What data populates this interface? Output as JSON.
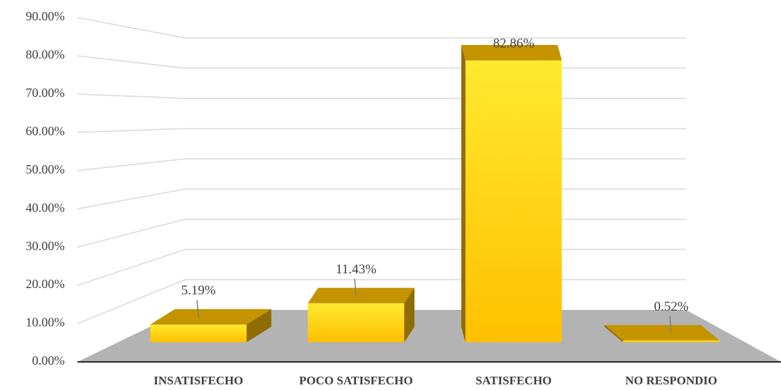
{
  "chart_data": {
    "type": "bar3d",
    "categories": [
      "INSATISFECHO",
      "POCO SATISFECHO",
      "SATISFECHO",
      "NO RESPONDIO"
    ],
    "values": [
      5.19,
      11.43,
      82.86,
      0.52
    ],
    "value_labels": [
      "5.19%",
      "11.43%",
      "82.86%",
      "0.52%"
    ],
    "color": "#ffc000",
    "ylim": [
      0,
      90
    ],
    "yticks": [
      {
        "value": 0,
        "label": "0.00%"
      },
      {
        "value": 10,
        "label": "10.00%"
      },
      {
        "value": 20,
        "label": "20.00%"
      },
      {
        "value": 30,
        "label": "30.00%"
      },
      {
        "value": 40,
        "label": "40.00%"
      },
      {
        "value": 50,
        "label": "50.00%"
      },
      {
        "value": 60,
        "label": "60.00%"
      },
      {
        "value": 70,
        "label": "70.00%"
      },
      {
        "value": 80,
        "label": "80.00%"
      },
      {
        "value": 90,
        "label": "90.00%"
      }
    ],
    "grid": true
  }
}
